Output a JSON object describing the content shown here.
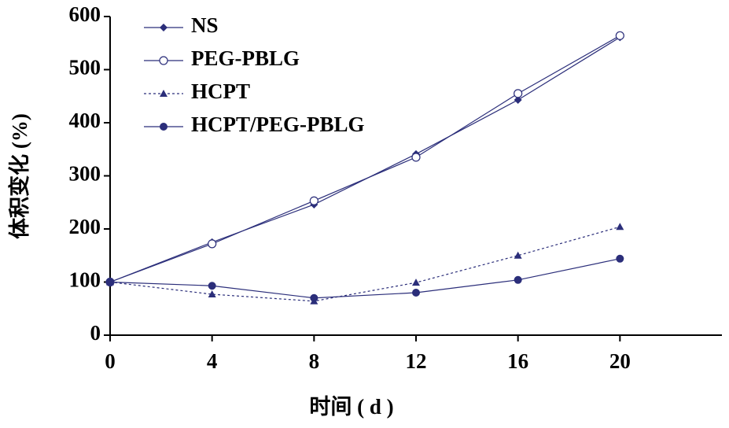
{
  "chart_data": {
    "type": "line",
    "x_label": "时间 ( d )",
    "y_label": "体积变化 (%)",
    "x": [
      0,
      4,
      8,
      12,
      16,
      20
    ],
    "xlim": [
      0,
      24
    ],
    "xticks": [
      0,
      4,
      8,
      12,
      16,
      20
    ],
    "ylim": [
      0,
      600
    ],
    "yticks": [
      0,
      100,
      200,
      300,
      400,
      500,
      600
    ],
    "legend": "upper-left",
    "series": [
      {
        "name": "NS",
        "color": "#2b2e7a",
        "marker": "diamond",
        "dash": false,
        "values": [
          100,
          175,
          246,
          341,
          443,
          561
        ]
      },
      {
        "name": "PEG-PBLG",
        "color": "#2b2e7a",
        "marker": "open-circle",
        "dash": false,
        "values": [
          100,
          172,
          253,
          335,
          455,
          564
        ]
      },
      {
        "name": "HCPT",
        "color": "#2b2e7a",
        "marker": "triangle",
        "dash": true,
        "values": [
          100,
          77,
          64,
          99,
          150,
          204
        ]
      },
      {
        "name": "HCPT/PEG-PBLG",
        "color": "#2b2e7a",
        "marker": "circle",
        "dash": false,
        "values": [
          100,
          93,
          70,
          80,
          104,
          144
        ]
      }
    ]
  }
}
